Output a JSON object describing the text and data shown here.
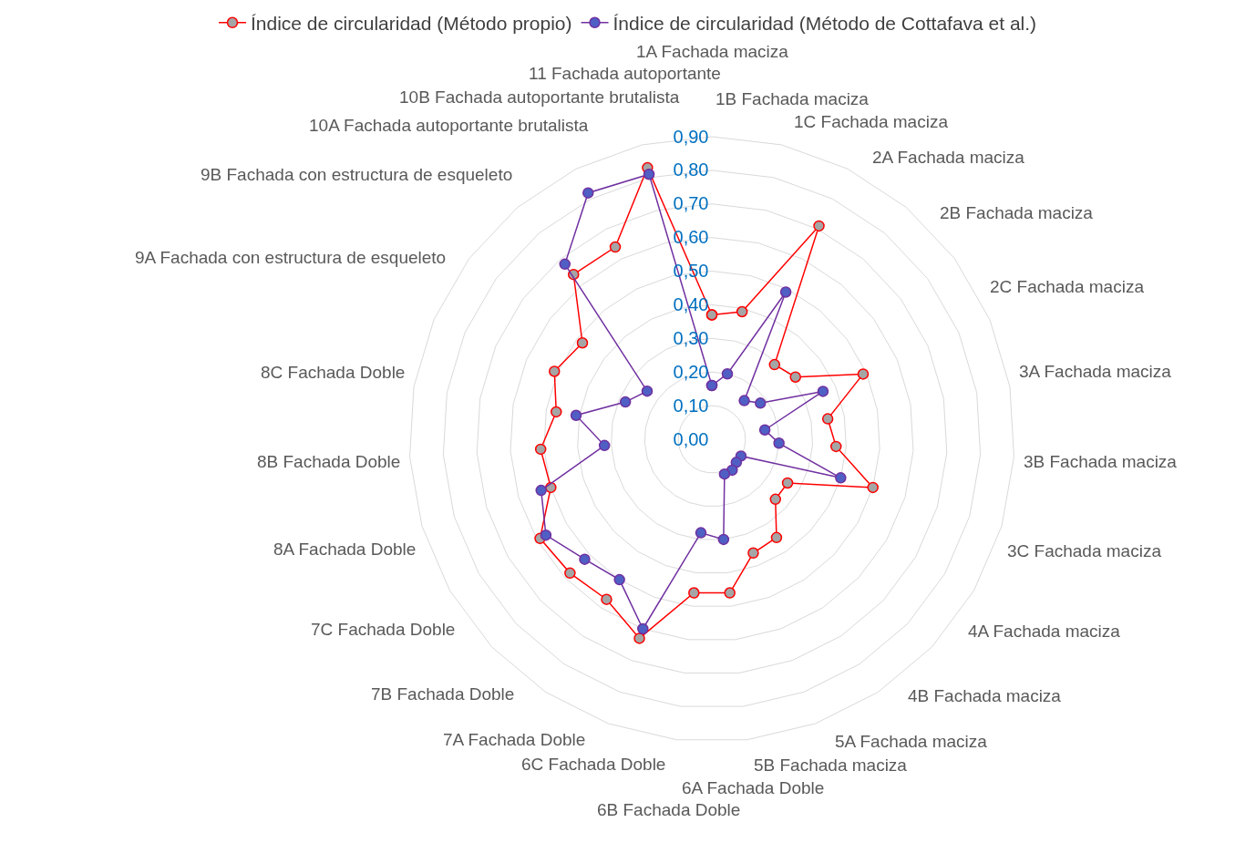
{
  "chart_data": {
    "type": "radar",
    "categories": [
      "1A Fachada maciza",
      "1B Fachada maciza",
      "1C Fachada maciza",
      "2A Fachada maciza",
      "2B Fachada maciza",
      "2C Fachada maciza",
      "3A Fachada maciza",
      "3B Fachada maciza",
      "3C Fachada maciza",
      "4A Fachada maciza",
      "4B Fachada maciza",
      "5A Fachada maciza",
      "5B Fachada maciza",
      "6A Fachada Doble",
      "6B Fachada Doble",
      "6C Fachada Doble",
      "7A Fachada Doble",
      "7B Fachada Doble",
      "7C Fachada Doble",
      "8A Fachada Doble",
      "8B Fachada Doble",
      "8C Fachada Doble",
      "9A Fachada con estructura de esqueleto",
      "9B Fachada con estructura de esqueleto",
      "10A Fachada autoportante brutalista",
      "10B Fachada autoportante brutalista",
      "11 Fachada autoportante"
    ],
    "series": [
      {
        "name": "Índice de circularidad (Método propio)",
        "color": "#ff0000",
        "values": [
          0.37,
          0.39,
          0.71,
          0.29,
          0.31,
          0.49,
          0.35,
          0.37,
          0.5,
          0.26,
          0.26,
          0.35,
          0.36,
          0.46,
          0.46,
          0.63,
          0.57,
          0.58,
          0.59,
          0.5,
          0.51,
          0.47,
          0.51,
          0.48,
          0.64,
          0.64,
          0.83
        ]
      },
      {
        "name": "Índice de circularidad (Método de Cottafava et al.)",
        "color": "#7030a0",
        "values": [
          0.16,
          0.2,
          0.49,
          0.15,
          0.18,
          0.36,
          0.16,
          0.2,
          0.4,
          0.1,
          0.1,
          0.11,
          0.11,
          0.3,
          0.28,
          0.6,
          0.5,
          0.52,
          0.57,
          0.53,
          0.32,
          0.41,
          0.28,
          0.24,
          0.68,
          0.82,
          0.81
        ]
      }
    ],
    "ylim": [
      0,
      0.9
    ],
    "yticks": [
      {
        "value": 0,
        "label": "0,00"
      },
      {
        "value": 0.1,
        "label": "0,10"
      },
      {
        "value": 0.2,
        "label": "0,20"
      },
      {
        "value": 0.3,
        "label": "0,30"
      },
      {
        "value": 0.4,
        "label": "0,40"
      },
      {
        "value": 0.5,
        "label": "0,50"
      },
      {
        "value": 0.6,
        "label": "0,60"
      },
      {
        "value": 0.7,
        "label": "0,70"
      },
      {
        "value": 0.8,
        "label": "0,80"
      },
      {
        "value": 0.9,
        "label": "0,90"
      }
    ],
    "grid": true,
    "legend": "top",
    "marker": "circle"
  }
}
